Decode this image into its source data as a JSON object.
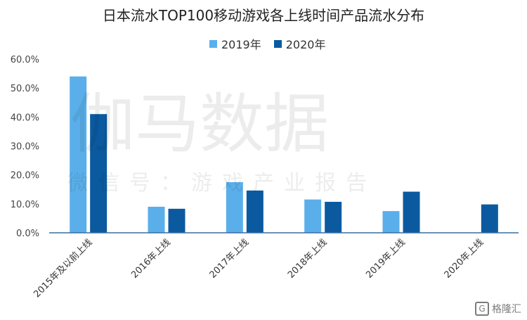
{
  "chart_data": {
    "type": "bar",
    "title": "日本流水TOP100移动游戏各上线时间产品流水分布",
    "categories": [
      "2015年及以前上线",
      "2016年上线",
      "2017年上线",
      "2018年上线",
      "2019年上线",
      "2020年上线"
    ],
    "series": [
      {
        "name": "2019年",
        "color": "#5aafea",
        "values": [
          54.0,
          9.0,
          17.5,
          11.5,
          7.5,
          null
        ]
      },
      {
        "name": "2020年",
        "color": "#0b5aa0",
        "values": [
          41.0,
          8.3,
          14.6,
          10.7,
          14.2,
          9.8
        ]
      }
    ],
    "yticks": [
      "0.0%",
      "10.0%",
      "20.0%",
      "30.0%",
      "40.0%",
      "50.0%",
      "60.0%"
    ],
    "ylim": [
      0,
      60
    ],
    "grid": false,
    "legend": "top"
  },
  "watermark": {
    "main": "伽马数据",
    "sub": "微信号：游戏产业报告"
  },
  "badge": {
    "text": "格隆汇",
    "icon": "G"
  }
}
